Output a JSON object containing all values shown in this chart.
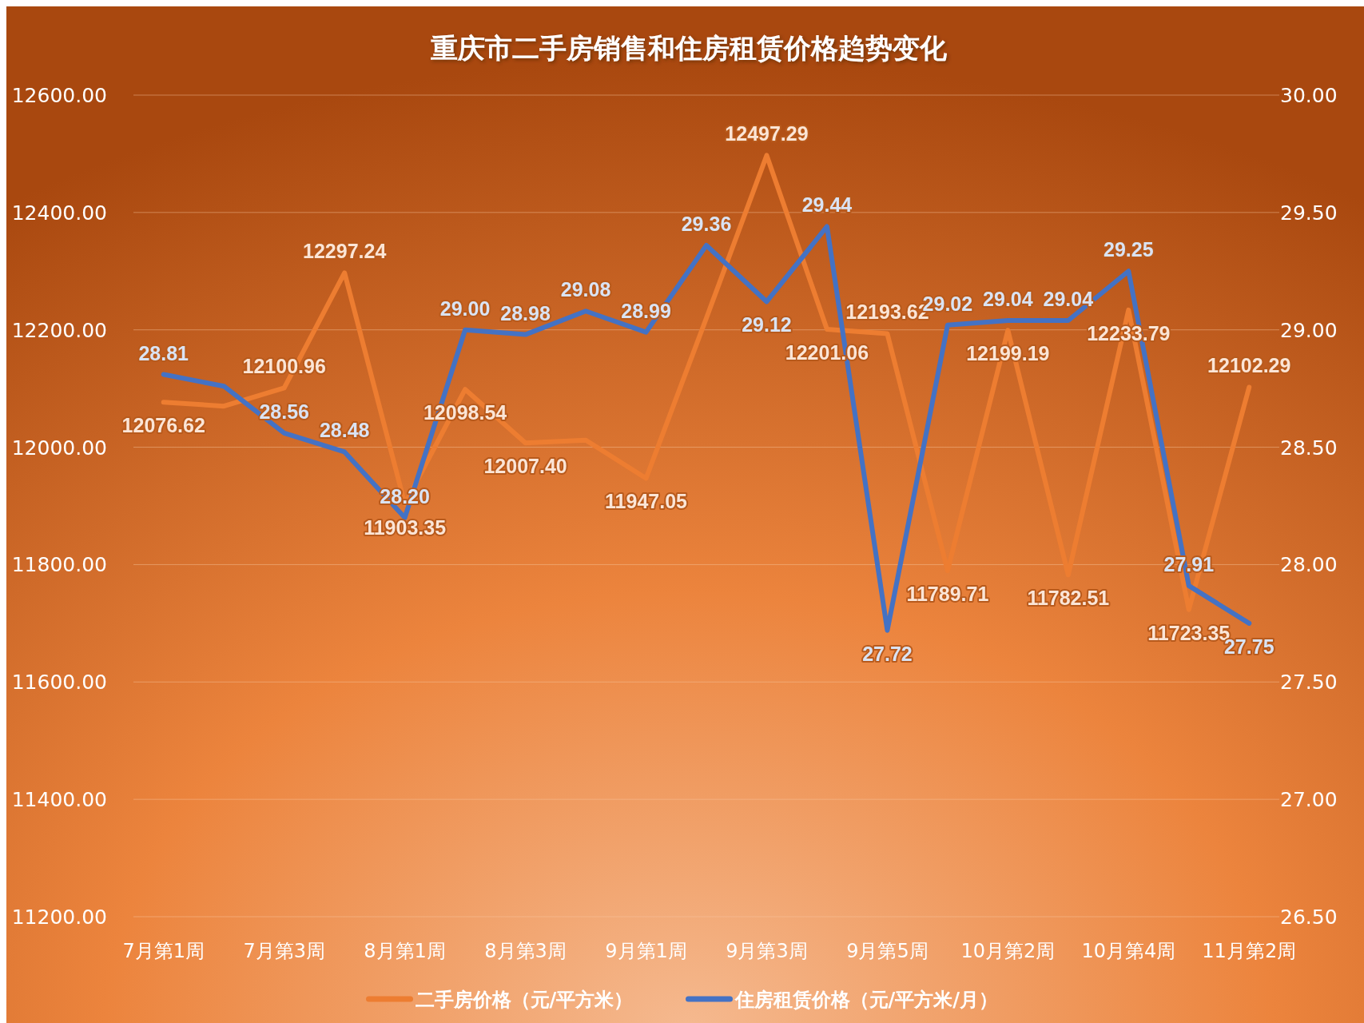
{
  "chart_data": {
    "type": "line",
    "title": "重庆市二手房销售和住房租赁价格趋势变化",
    "categories": [
      "7月第1周",
      null,
      "7月第3周",
      null,
      "8月第1周",
      null,
      "8月第3周",
      null,
      "9月第1周",
      null,
      "9月第3周",
      null,
      "9月第5周",
      null,
      "10月第2周",
      null,
      "10月第4周",
      null,
      "11月第2周"
    ],
    "series": [
      {
        "name": "二手房价格（元/平方米）",
        "color": "#ed7d31",
        "values": [
          12076.62,
          12070,
          12100.96,
          12297.24,
          11903.35,
          12098.54,
          12007.4,
          12012,
          11947.05,
          12220,
          12497.29,
          12201.06,
          12193.62,
          11789.71,
          12199.19,
          11782.51,
          12233.79,
          11723.35,
          12102.29
        ],
        "value_labels": [
          "12076.62",
          null,
          "12100.96",
          "12297.24",
          "11903.35",
          "12098.54",
          "12007.40",
          null,
          "11947.05",
          null,
          "12497.29",
          "12201.06",
          "12193.62",
          "11789.71",
          "12199.19",
          "11782.51",
          "12233.79",
          "11723.35",
          "12102.29"
        ]
      },
      {
        "name": "住房租赁价格（元/平方米/月）",
        "color": "#4472c4",
        "axis": "y2",
        "values": [
          28.81,
          28.76,
          28.56,
          28.48,
          28.2,
          29.0,
          28.98,
          29.08,
          28.99,
          29.36,
          29.12,
          29.44,
          27.72,
          29.02,
          29.04,
          29.04,
          29.25,
          27.91,
          27.75
        ],
        "value_labels": [
          "28.81",
          null,
          "28.56",
          "28.48",
          "28.20",
          "29.00",
          "28.98",
          "29.08",
          "28.99",
          "29.36",
          "29.12",
          "29.44",
          "27.72",
          "29.02",
          "29.04",
          "29.04",
          "29.25",
          "27.91",
          "27.75"
        ]
      }
    ],
    "ylim": [
      11200,
      12600
    ],
    "yticks": [
      {
        "value": 11200,
        "label": "11200.00"
      },
      {
        "value": 11400,
        "label": "11400.00"
      },
      {
        "value": 11600,
        "label": "11600.00"
      },
      {
        "value": 11800,
        "label": "11800.00"
      },
      {
        "value": 12000,
        "label": "12000.00"
      },
      {
        "value": 12200,
        "label": "12200.00"
      },
      {
        "value": 12400,
        "label": "12400.00"
      },
      {
        "value": 12600,
        "label": "12600.00"
      }
    ],
    "y2lim": [
      26.5,
      30
    ],
    "y2ticks": [
      {
        "value": 26.5,
        "label": "26.50"
      },
      {
        "value": 27,
        "label": "27.00"
      },
      {
        "value": 27.5,
        "label": "27.50"
      },
      {
        "value": 28,
        "label": "28.00"
      },
      {
        "value": 28.5,
        "label": "28.50"
      },
      {
        "value": 29,
        "label": "29.00"
      },
      {
        "value": 29.5,
        "label": "29.50"
      },
      {
        "value": 30,
        "label": "30.00"
      }
    ],
    "grid": "y",
    "legend": "bottom",
    "marker": "none",
    "line_style": "solid"
  }
}
